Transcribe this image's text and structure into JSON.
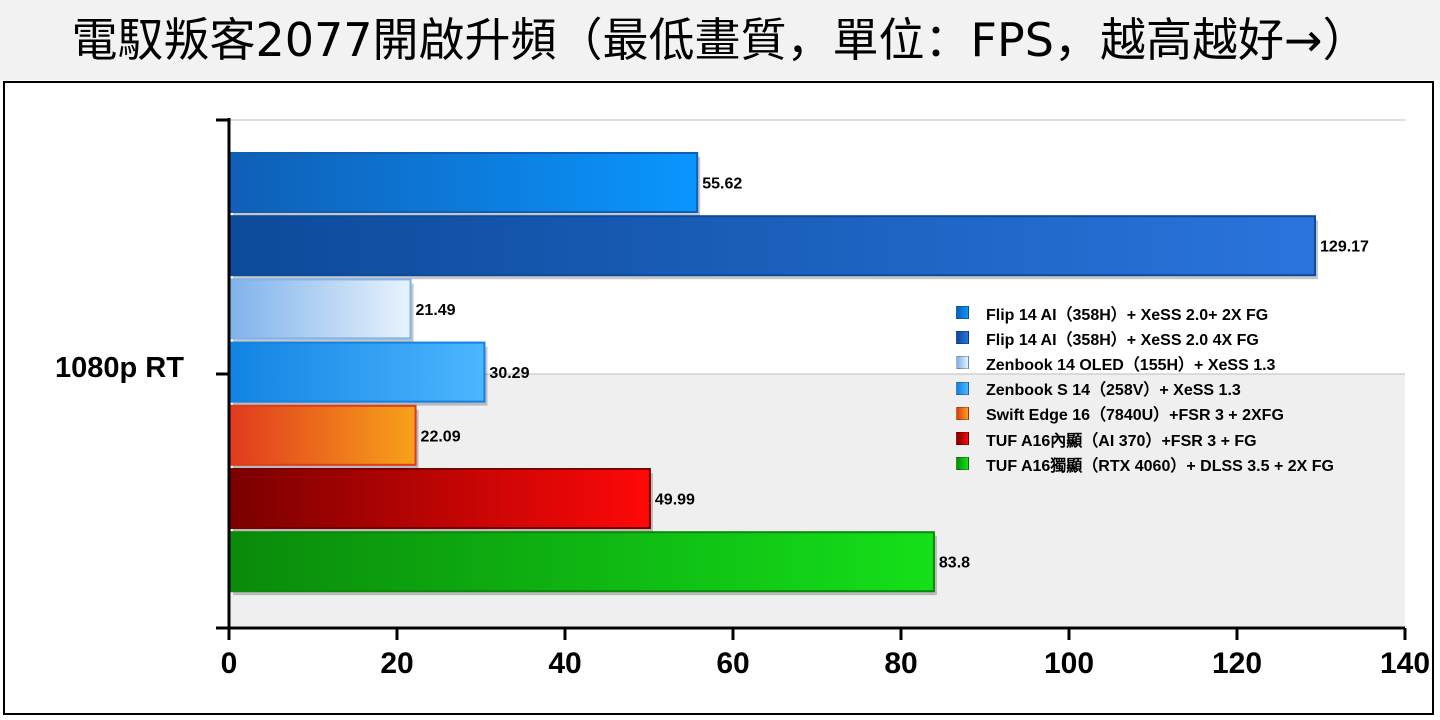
{
  "title": "電馭叛客2077開啟升頻（最低畫質，單位：FPS，越高越好→）",
  "chart_data": {
    "type": "bar",
    "orientation": "horizontal",
    "categories": [
      "1080p RT"
    ],
    "series": [
      {
        "name": "Flip 14 AI（358H）+ XeSS 2.0+ 2X FG",
        "values": [
          55.62
        ],
        "label": "55.62",
        "color": "#1c86ee",
        "gradient": [
          "#0f5fb5",
          "#0a96ff"
        ]
      },
      {
        "name": "Flip 14 AI（358H）+ XeSS 2.0 4X FG",
        "values": [
          129.17
        ],
        "label": "129.17",
        "color": "#1d5fb8",
        "gradient": [
          "#0c4a9a",
          "#2a74dc"
        ]
      },
      {
        "name": "Zenbook 14 OLED（155H）+ XeSS 1.3",
        "values": [
          21.49
        ],
        "label": "21.49",
        "color": "#a9cdf2",
        "gradient": [
          "#7fb2ea",
          "#e8f3fd"
        ]
      },
      {
        "name": "Zenbook S 14（258V）+ XeSS 1.3",
        "values": [
          30.29
        ],
        "label": "30.29",
        "color": "#2a9bef",
        "gradient": [
          "#1283e2",
          "#4cb6ff"
        ]
      },
      {
        "name": "Swift Edge 16（7840U）+FSR 3 + 2XFG",
        "values": [
          22.09
        ],
        "label": "22.09",
        "color": "#ee6a1a",
        "gradient": [
          "#e03a1e",
          "#f7a21a"
        ]
      },
      {
        "name": "TUF A16內顯（AI 370）+FSR 3 + FG",
        "values": [
          49.99
        ],
        "label": "49.99",
        "color": "#c00000",
        "gradient": [
          "#7a0000",
          "#ff0808"
        ]
      },
      {
        "name": "TUF A16獨顯（RTX 4060）+ DLSS 3.5 + 2X FG",
        "values": [
          83.8
        ],
        "label": "83.8",
        "color": "#1cc41c",
        "gradient": [
          "#0a8a0a",
          "#14e01a"
        ]
      }
    ],
    "x_ticks": [
      "0",
      "20",
      "40",
      "60",
      "80",
      "100",
      "120",
      "140"
    ],
    "xlim": [
      0,
      140
    ],
    "grid": true,
    "legend_position": "right"
  }
}
